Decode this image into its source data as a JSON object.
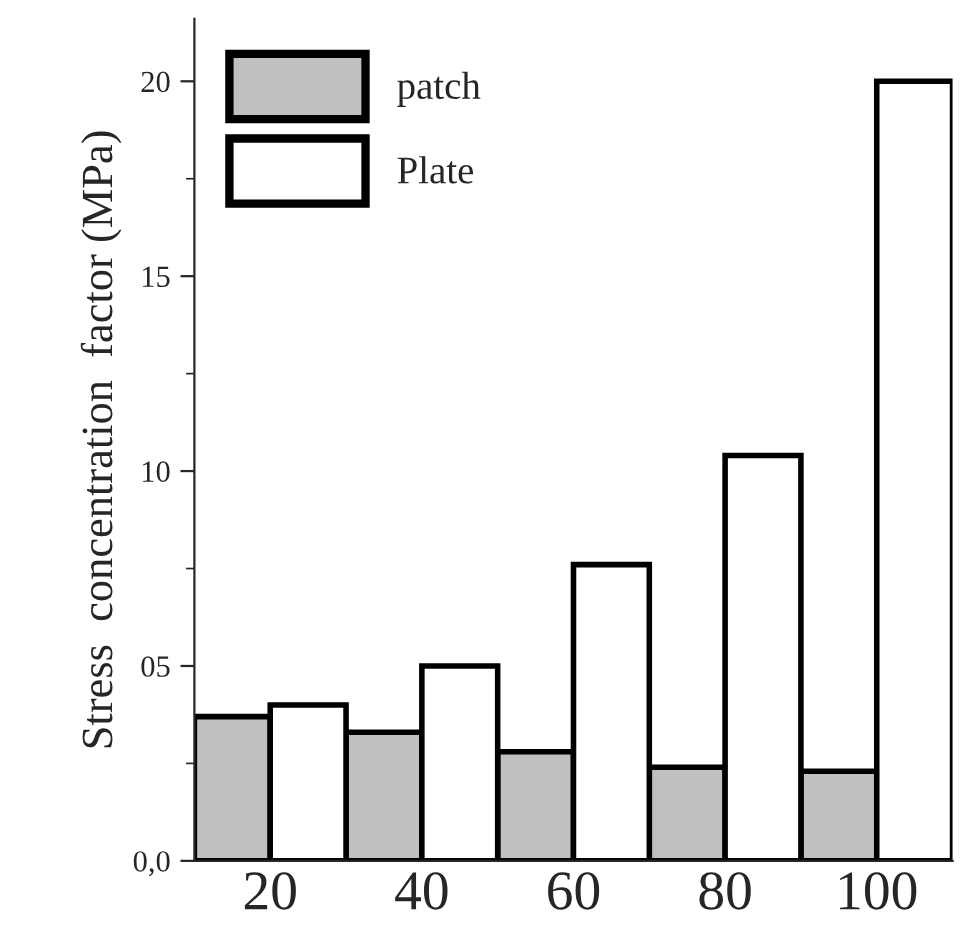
{
  "chart_data": {
    "type": "bar",
    "ylabel": "Stress  concentration  factor (MPa)",
    "categories": [
      "20",
      "40",
      "60",
      "80",
      "100"
    ],
    "series": [
      {
        "name": "patch",
        "color": "#c0c0c0",
        "values": [
          3.7,
          3.3,
          2.8,
          2.4,
          2.3
        ]
      },
      {
        "name": "Plate",
        "color": "#ffffff",
        "values": [
          4.0,
          5.0,
          7.6,
          10.4,
          20.0
        ]
      }
    ],
    "ylim": [
      0,
      21.6
    ],
    "yticks": [
      {
        "value": 0,
        "label": "0,0"
      },
      {
        "value": 5,
        "label": "05"
      },
      10,
      15,
      20
    ],
    "legend": "top left",
    "grid": false
  }
}
